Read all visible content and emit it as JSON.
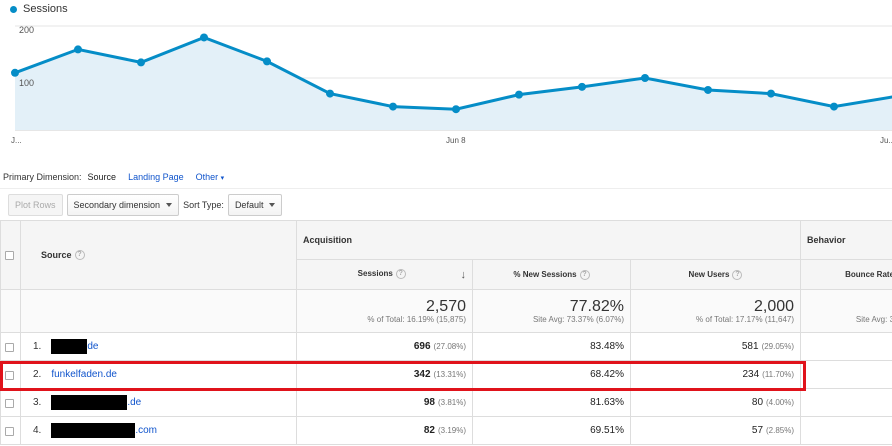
{
  "chart": {
    "legend": "Sessions",
    "y_ticks": [
      "200",
      "100"
    ],
    "x_labels": [
      "J...",
      "Jun 8",
      "Ju..."
    ],
    "line_color": "#058dc7",
    "fill_color": "#e3f0f8"
  },
  "chart_data": {
    "type": "area",
    "series": [
      {
        "name": "Sessions",
        "values": [
          110,
          155,
          130,
          178,
          132,
          70,
          45,
          40,
          68,
          83,
          100,
          77,
          70,
          45,
          65
        ]
      }
    ],
    "ylim": [
      0,
      250
    ],
    "xlabel": "",
    "ylabel": ""
  },
  "dimension": {
    "label": "Primary Dimension:",
    "selected": "Source",
    "options": [
      "Landing Page",
      "Other"
    ]
  },
  "toolbar": {
    "plot_rows": "Plot Rows",
    "secondary_dimension": "Secondary dimension",
    "sort_type_label": "Sort Type:",
    "sort_type_value": "Default"
  },
  "table": {
    "source_header": "Source",
    "acquisition_header": "Acquisition",
    "behavior_header": "Behavior",
    "columns": {
      "sessions": "Sessions",
      "new_sessions": "% New Sessions",
      "new_users": "New Users",
      "bounce_rate": "Bounce Rate"
    },
    "totals": {
      "sessions": "2,570",
      "sessions_sub": "% of Total: 16.19% (15,875)",
      "new_sessions": "77.82%",
      "new_sessions_sub": "Site Avg: 73.37% (6.07%)",
      "new_users": "2,000",
      "new_users_sub": "% of Total: 17.17% (11,647)",
      "bounce_sub": "Site Avg: 3"
    },
    "rows": [
      {
        "index": "1.",
        "source": "de",
        "sessions": "696",
        "sessions_pct": "(27.08%)",
        "new_sessions": "83.48%",
        "new_users": "581",
        "new_users_pct": "(29.05%)"
      },
      {
        "index": "2.",
        "source": "funkelfaden.de",
        "sessions": "342",
        "sessions_pct": "(13.31%)",
        "new_sessions": "68.42%",
        "new_users": "234",
        "new_users_pct": "(11.70%)"
      },
      {
        "index": "3.",
        "source": ".de",
        "sessions": "98",
        "sessions_pct": "(3.81%)",
        "new_sessions": "81.63%",
        "new_users": "80",
        "new_users_pct": "(4.00%)"
      },
      {
        "index": "4.",
        "source": ".com",
        "sessions": "82",
        "sessions_pct": "(3.19%)",
        "new_sessions": "69.51%",
        "new_users": "57",
        "new_users_pct": "(2.85%)"
      }
    ]
  }
}
